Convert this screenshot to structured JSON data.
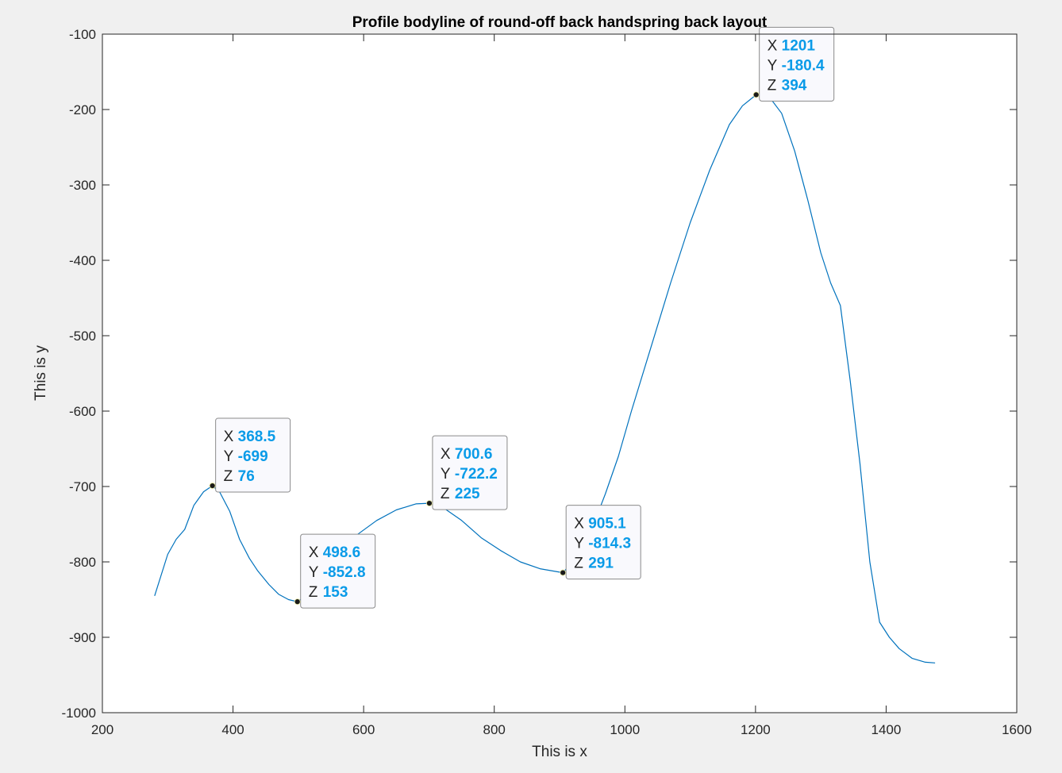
{
  "chart_data": {
    "type": "line",
    "title": "Profile bodyline of round-off back handspring back layout",
    "xlabel": "This is x",
    "ylabel": "This is y",
    "xlim": [
      200,
      1600
    ],
    "ylim": [
      -1000,
      -100
    ],
    "xticks": [
      200,
      400,
      600,
      800,
      1000,
      1200,
      1400,
      1600
    ],
    "yticks": [
      -100,
      -200,
      -300,
      -400,
      -500,
      -600,
      -700,
      -800,
      -900,
      -1000
    ],
    "grid": false,
    "line_color": "#0072bd",
    "series": [
      {
        "x": [
          280,
          300,
          313,
          326,
          340,
          355,
          368.5,
          380,
          395,
          410,
          425,
          438,
          455,
          470,
          485,
          498.6,
          515,
          535,
          560,
          590,
          620,
          650,
          680,
          700.6,
          720,
          750,
          780,
          810,
          840,
          870,
          905.1,
          930,
          950,
          970,
          990,
          1010,
          1040,
          1070,
          1100,
          1130,
          1160,
          1180,
          1201,
          1220,
          1240,
          1260,
          1280,
          1300,
          1315,
          1330,
          1345,
          1360,
          1375,
          1390,
          1405,
          1420,
          1440,
          1460,
          1475
        ],
        "y": [
          -845,
          -790,
          -770,
          -757,
          -725,
          -707,
          -699,
          -708,
          -733,
          -770,
          -795,
          -812,
          -830,
          -843,
          -850,
          -852.8,
          -843,
          -820,
          -790,
          -764,
          -745,
          -731,
          -723,
          -722.2,
          -727,
          -745,
          -768,
          -785,
          -800,
          -809,
          -814.3,
          -790,
          -755,
          -710,
          -660,
          -600,
          -515,
          -430,
          -350,
          -280,
          -220,
          -195,
          -180.4,
          -182,
          -205,
          -255,
          -320,
          -390,
          -430,
          -460,
          -560,
          -670,
          -800,
          -880,
          -900,
          -915,
          -928,
          -933,
          -934
        ]
      }
    ],
    "datatips": [
      {
        "x": 368.5,
        "y": -699,
        "x_label": "368.5",
        "y_label": "-699",
        "z_label": "76"
      },
      {
        "x": 498.6,
        "y": -852.8,
        "x_label": "498.6",
        "y_label": "-852.8",
        "z_label": "153"
      },
      {
        "x": 700.6,
        "y": -722.2,
        "x_label": "700.6",
        "y_label": "-722.2",
        "z_label": "225"
      },
      {
        "x": 905.1,
        "y": -814.3,
        "x_label": "905.1",
        "y_label": "-814.3",
        "z_label": "291"
      },
      {
        "x": 1201,
        "y": -180.4,
        "x_label": "1201",
        "y_label": "-180.4",
        "z_label": "394"
      }
    ],
    "datatip_keys": [
      "X",
      "Y",
      "Z"
    ]
  }
}
